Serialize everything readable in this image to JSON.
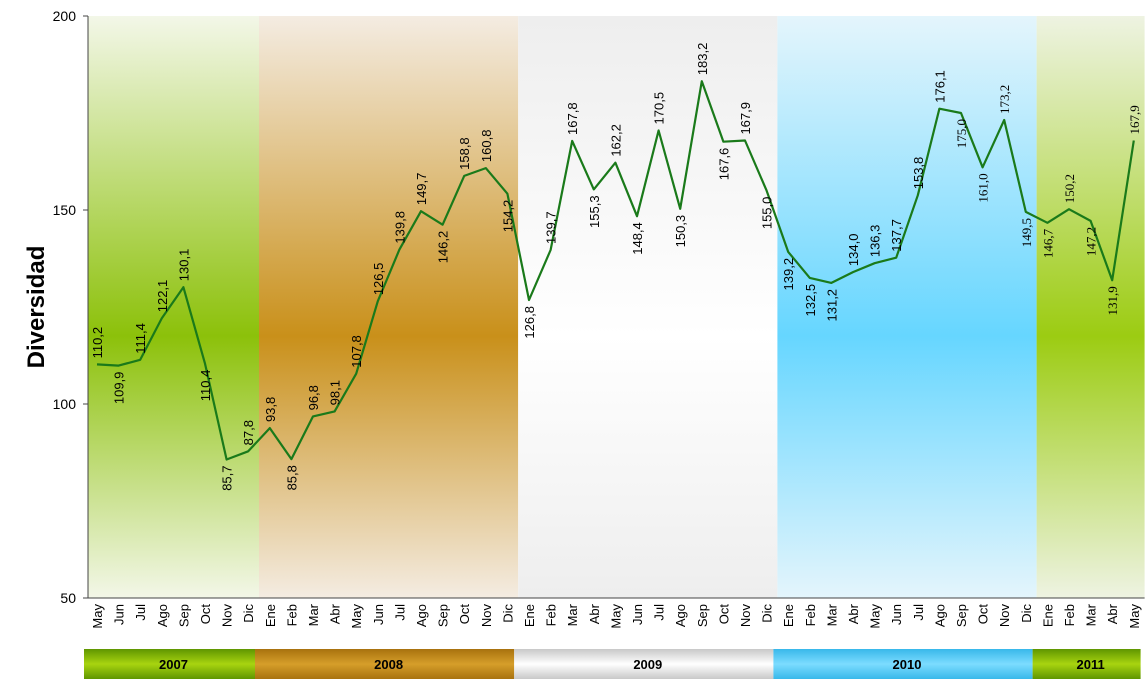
{
  "chart_data": {
    "type": "line",
    "ylabel": "Diversidad",
    "ylim": [
      50,
      200
    ],
    "yticks": [
      50,
      100,
      150,
      200
    ],
    "line_color": "#1a7a1a",
    "months": [
      "May",
      "Jun",
      "Jul",
      "Ago",
      "Sep",
      "Oct",
      "Nov",
      "Dic",
      "Ene",
      "Feb",
      "Mar",
      "Abr",
      "May",
      "Jun",
      "Jul",
      "Ago",
      "Sep",
      "Oct",
      "Nov",
      "Dic",
      "Ene",
      "Feb",
      "Mar",
      "Abr",
      "May",
      "Jun",
      "Jul",
      "Ago",
      "Sep",
      "Oct",
      "Nov",
      "Dic",
      "Ene",
      "Feb",
      "Mar",
      "Abr",
      "May",
      "Jun",
      "Jul",
      "Ago",
      "Sep",
      "Oct",
      "Nov",
      "Dic",
      "Ene",
      "Feb",
      "Mar",
      "Abr",
      "May"
    ],
    "values": [
      110.2,
      109.9,
      111.4,
      122.1,
      130.1,
      110.4,
      85.7,
      87.8,
      93.8,
      85.8,
      96.8,
      98.1,
      107.8,
      126.5,
      139.8,
      149.7,
      146.2,
      158.8,
      160.8,
      154.2,
      126.8,
      139.7,
      167.8,
      155.3,
      162.2,
      148.4,
      170.5,
      150.3,
      183.2,
      167.6,
      167.9,
      155.0,
      139.2,
      132.5,
      131.2,
      134.0,
      136.3,
      137.7,
      153.8,
      176.1,
      175.0,
      161.0,
      173.2,
      149.5,
      146.7,
      150.2,
      147.2,
      131.9,
      167.9
    ],
    "data_labels": [
      "110,2",
      "109,9",
      "111,4",
      "122,1",
      "130,1",
      "110,4",
      "85,7",
      "87,8",
      "93,8",
      "85,8",
      "96,8",
      "98,1",
      "107,8",
      "126,5",
      "139,8",
      "149,7",
      "146,2",
      "158,8",
      "160,8",
      "154,2",
      "126,8",
      "139,7",
      "167,8",
      "155,3",
      "162,2",
      "148,4",
      "170,5",
      "150,3",
      "183,2",
      "167,6",
      "167,9",
      "155,0",
      "139,2",
      "132,5",
      "131,2",
      "134,0",
      "136,3",
      "137,7",
      "153,8",
      "176,1",
      "175,0",
      "161,0",
      "173,2",
      "149,5",
      "146,7",
      "150,2",
      "147,2",
      "131,9",
      "167,9"
    ],
    "years": [
      {
        "label": "2007",
        "start": 0,
        "end": 7,
        "colors": [
          "#8cc10a",
          "#f3f7e8"
        ],
        "bar_colors": [
          "#5f9600",
          "#a8d410"
        ]
      },
      {
        "label": "2008",
        "start": 8,
        "end": 19,
        "colors": [
          "#c9901a",
          "#f4ece2"
        ],
        "bar_colors": [
          "#a8720e",
          "#d69e2a"
        ]
      },
      {
        "label": "2009",
        "start": 20,
        "end": 31,
        "colors": [
          "#ffffff",
          "#eeeeee"
        ],
        "bar_colors": [
          "#c8c8c8",
          "#ffffff"
        ]
      },
      {
        "label": "2010",
        "start": 32,
        "end": 43,
        "colors": [
          "#66d6ff",
          "#e4f5fc"
        ],
        "bar_colors": [
          "#38b8ea",
          "#7cdcff"
        ]
      },
      {
        "label": "2011",
        "start": 44,
        "end": 48,
        "colors": [
          "#9ccc12",
          "#eef3e2"
        ],
        "bar_colors": [
          "#5f9600",
          "#a8d410"
        ]
      }
    ]
  }
}
